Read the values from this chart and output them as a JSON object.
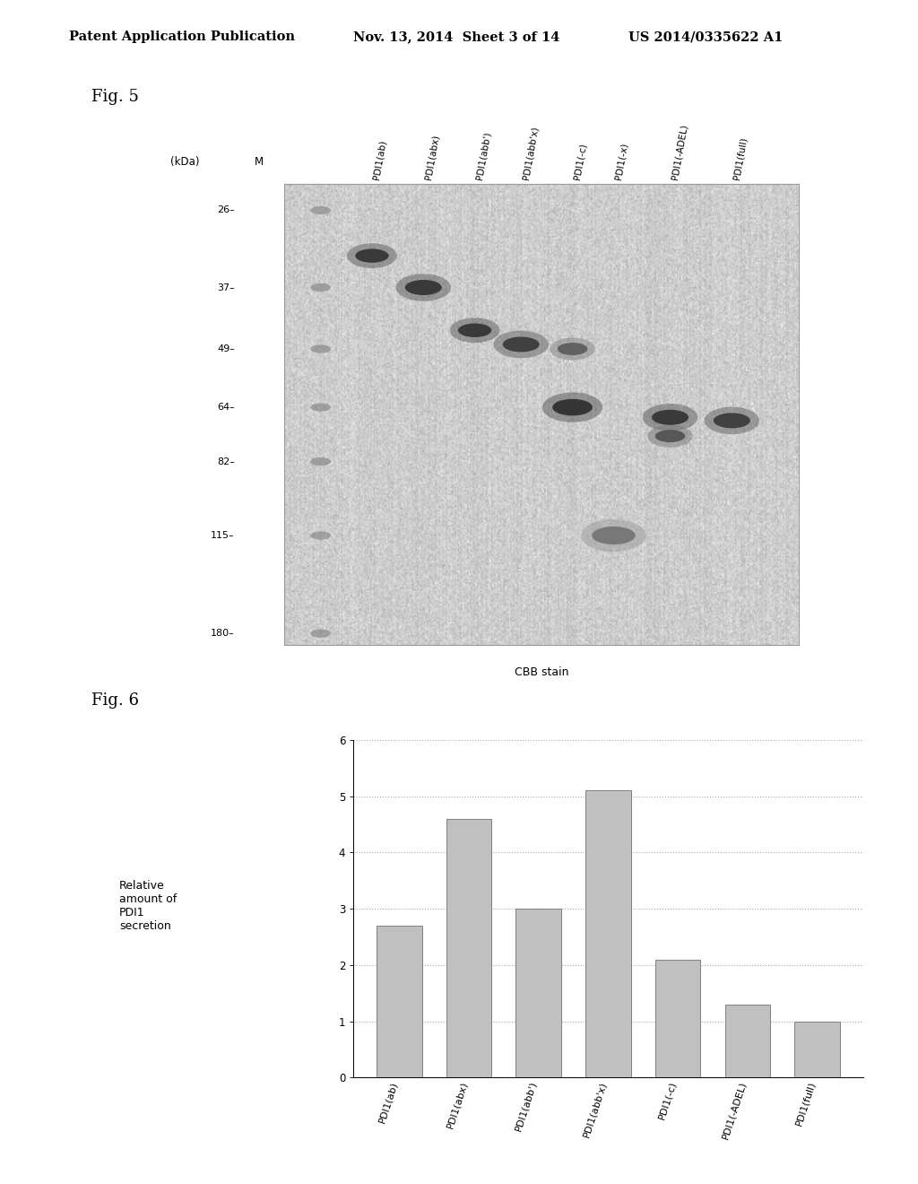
{
  "header_left": "Patent Application Publication",
  "header_mid": "Nov. 13, 2014  Sheet 3 of 14",
  "header_right": "US 2014/0335622 A1",
  "fig5_label": "Fig. 5",
  "fig6_label": "Fig. 6",
  "gel_caption": "CBB stain",
  "gel_ylabel": "(kDa)",
  "gel_marker_label": "M",
  "gel_mw_labels": [
    "180",
    "115",
    "82",
    "64",
    "49",
    "37",
    "26"
  ],
  "gel_mw_positions": [
    180,
    115,
    82,
    64,
    49,
    37,
    26
  ],
  "gel_lane_labels": [
    "PDI1(ab)",
    "PDI1(abx)",
    "PDI1(abb')",
    "PDI1(abb'x)",
    "PDI1(-c)",
    "PDI1(-x)",
    "PDI1(-ADEL)",
    "PDI1(full)"
  ],
  "gel_bands": [
    {
      "lane": 0,
      "mw": 32,
      "intensity": 0.88,
      "size": 1.0
    },
    {
      "lane": 1,
      "mw": 37,
      "intensity": 0.88,
      "size": 1.1
    },
    {
      "lane": 2,
      "mw": 45,
      "intensity": 0.88,
      "size": 1.0
    },
    {
      "lane": 3,
      "mw": 48,
      "intensity": 0.85,
      "size": 1.1
    },
    {
      "lane": 4,
      "mw": 64,
      "intensity": 0.9,
      "size": 1.2
    },
    {
      "lane": 4,
      "mw": 49,
      "intensity": 0.7,
      "size": 0.9
    },
    {
      "lane": 5,
      "mw": 115,
      "intensity": 0.6,
      "size": 1.3
    },
    {
      "lane": 6,
      "mw": 67,
      "intensity": 0.88,
      "size": 1.1
    },
    {
      "lane": 6,
      "mw": 73,
      "intensity": 0.75,
      "size": 0.9
    },
    {
      "lane": 7,
      "mw": 68,
      "intensity": 0.85,
      "size": 1.1
    }
  ],
  "bar_categories": [
    "PDI1(ab)",
    "PDI1(abx)",
    "PDI1(abb')",
    "PDI1(abb'x)",
    "PDI1(-c)",
    "PDI1(-ADEL)",
    "PDI1(full)"
  ],
  "bar_values": [
    2.7,
    4.6,
    3.0,
    5.1,
    2.1,
    1.3,
    1.0
  ],
  "bar_color": "#c0c0c0",
  "bar_edge_color": "#808080",
  "bar_ylim": [
    0,
    6
  ],
  "bar_yticks": [
    0,
    1,
    2,
    3,
    4,
    5,
    6
  ],
  "background_color": "#ffffff",
  "gel_bg_mean": 0.8,
  "gel_bg_std": 0.04,
  "header_fontsize": 10.5
}
